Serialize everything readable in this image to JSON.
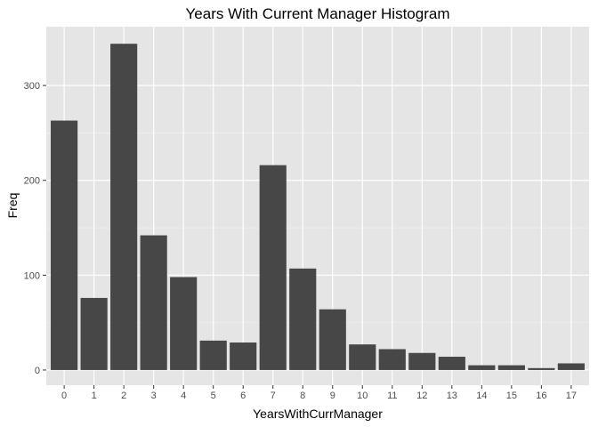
{
  "chart_data": {
    "type": "bar",
    "title": "Years With Current Manager Histogram",
    "xlabel": "YearsWithCurrManager",
    "ylabel": "Freq",
    "categories": [
      "0",
      "1",
      "2",
      "3",
      "4",
      "5",
      "6",
      "7",
      "8",
      "9",
      "10",
      "11",
      "12",
      "13",
      "14",
      "15",
      "16",
      "17"
    ],
    "values": [
      263,
      76,
      344,
      142,
      98,
      31,
      29,
      216,
      107,
      64,
      27,
      22,
      18,
      14,
      5,
      5,
      2,
      7
    ],
    "ylim": [
      -16,
      362
    ],
    "yticks": [
      0,
      100,
      200,
      300
    ],
    "grid": true,
    "colors": {
      "panel": "#e5e5e5",
      "grid_major": "#ffffff",
      "bar": "#474747",
      "tick": "#333333"
    }
  }
}
